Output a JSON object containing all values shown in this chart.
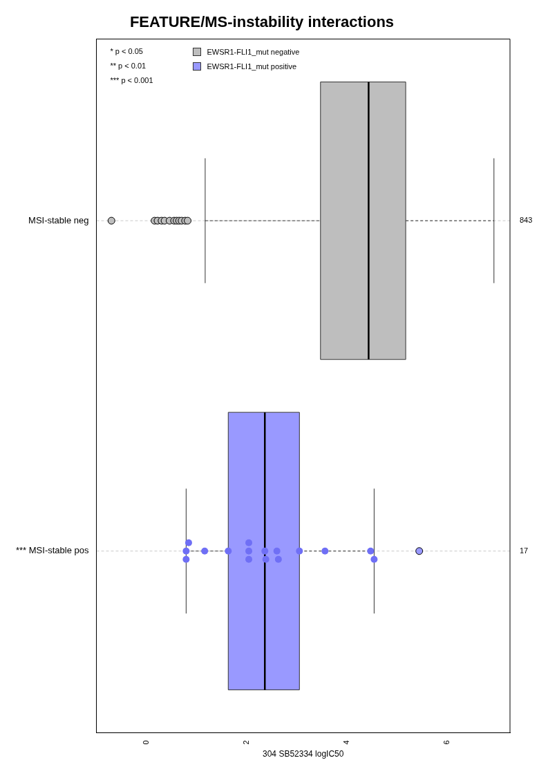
{
  "chart_data": {
    "type": "box",
    "orientation": "horizontal",
    "title": "FEATURE/MS-instability interactions",
    "xlabel": "304 SB52334 logIC50",
    "categories": [
      "MSI-stable neg",
      "*** MSI-stable pos"
    ],
    "xlim": [
      -1,
      7.25
    ],
    "xticks": [
      0,
      2,
      4,
      6
    ],
    "grid": "y",
    "legend": "top left",
    "line_style": "dashed",
    "series": [
      {
        "name": "EWSR1-FLI1_mut negative",
        "color": "#bebebe",
        "boxes": [
          {
            "low": 1.17,
            "q1": 3.47,
            "median": 4.43,
            "q3": 5.17,
            "high": 6.93,
            "outliers": [
              -0.7,
              0.16,
              0.22,
              0.3,
              0.36,
              0.46,
              0.55,
              0.6,
              0.65,
              0.7,
              0.77,
              0.82
            ]
          },
          null
        ]
      },
      {
        "name": "EWSR1-FLI1_mut positive",
        "color": "#9999ff",
        "boxes": [
          null,
          {
            "low": 0.79,
            "q1": 1.63,
            "median": 2.36,
            "q3": 3.05,
            "high": 4.54,
            "outliers": [
              5.44
            ]
          }
        ]
      },
      {
        "type": "scatter",
        "color": "#6f6ff5",
        "x": [
          "*** MSI-stable pos",
          "*** MSI-stable pos",
          "*** MSI-stable pos",
          "*** MSI-stable pos",
          "*** MSI-stable pos",
          "*** MSI-stable pos",
          "*** MSI-stable pos",
          "*** MSI-stable pos",
          "*** MSI-stable pos",
          "*** MSI-stable pos",
          "*** MSI-stable pos",
          "*** MSI-stable pos",
          "*** MSI-stable pos",
          "*** MSI-stable pos",
          "*** MSI-stable pos",
          "*** MSI-stable pos"
        ],
        "values": [
          0.79,
          0.79,
          0.84,
          1.16,
          1.63,
          2.04,
          2.04,
          2.04,
          2.36,
          2.38,
          2.6,
          2.63,
          3.05,
          3.56,
          4.47,
          4.54
        ]
      }
    ],
    "annotations": [
      "* p < 0.05",
      "** p < 0.01",
      "*** p < 0.001",
      "843",
      "17"
    ]
  }
}
